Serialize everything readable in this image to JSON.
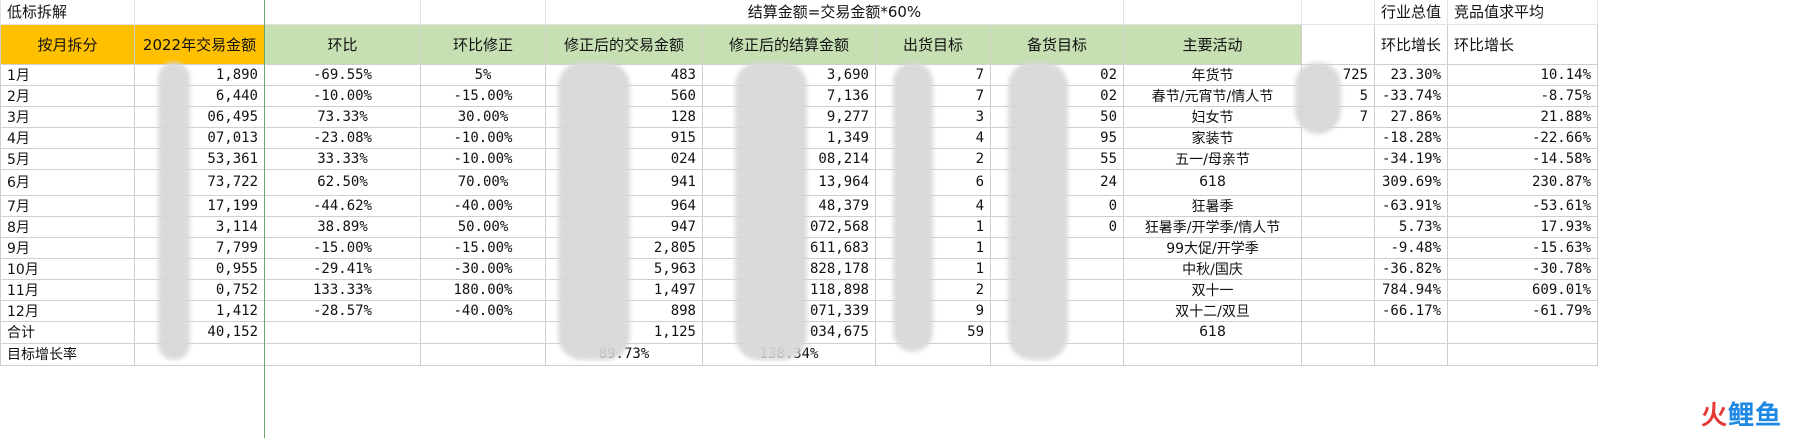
{
  "top": {
    "title": "低标拆解",
    "settlement_note": "结算金额=交易金额*60%",
    "industry_total": "行业总值",
    "competitor_avg": "竞品值求平均"
  },
  "headers": [
    "按月拆分",
    "2022年交易金额",
    "环比",
    "环比修正",
    "修正后的交易金额",
    "修正后的结算金额",
    "出货目标",
    "备货目标",
    "主要活动",
    "",
    "环比增长",
    "环比增长"
  ],
  "header_colors": {
    "orange": "#ffc000",
    "green": "#c6e0b4"
  },
  "rows": [
    {
      "month": "1月",
      "amount": "1,890",
      "mom": "-69.55%",
      "fix": "5%",
      "adj_trade": "483",
      "adj_settle": "3,690",
      "ship": "7",
      "stock": "02",
      "activity": "年货节",
      "extra": "725",
      "ind": "23.30%",
      "comp": "10.14%"
    },
    {
      "month": "2月",
      "amount": "6,440",
      "mom": "-10.00%",
      "fix": "-15.00%",
      "adj_trade": "560",
      "adj_settle": "7,136",
      "ship": "7",
      "stock": "02",
      "activity": "春节/元宵节/情人节",
      "extra": "5",
      "ind": "-33.74%",
      "comp": "-8.75%"
    },
    {
      "month": "3月",
      "amount": "06,495",
      "mom": "73.33%",
      "fix": "30.00%",
      "adj_trade": "128",
      "adj_settle": "9,277",
      "ship": "3",
      "stock": "50",
      "activity": "妇女节",
      "extra": "7",
      "ind": "27.86%",
      "comp": "21.88%"
    },
    {
      "month": "4月",
      "amount": "07,013",
      "mom": "-23.08%",
      "fix": "-10.00%",
      "adj_trade": "915",
      "adj_settle": "1,349",
      "ship": "4",
      "stock": "95",
      "activity": "家装节",
      "extra": "",
      "ind": "-18.28%",
      "comp": "-22.66%"
    },
    {
      "month": "5月",
      "amount": "53,361",
      "mom": "33.33%",
      "fix": "-10.00%",
      "adj_trade": "024",
      "adj_settle": "08,214",
      "ship": "2",
      "stock": "55",
      "activity": "五一/母亲节",
      "extra": "",
      "ind": "-34.19%",
      "comp": "-14.58%"
    },
    {
      "month": "6月",
      "amount": "73,722",
      "mom": "62.50%",
      "fix": "70.00%",
      "adj_trade": "941",
      "adj_settle": "13,964",
      "ship": "6",
      "stock": "24",
      "activity": "618",
      "extra": "",
      "ind": "309.69%",
      "comp": "230.87%"
    },
    {
      "month": "7月",
      "amount": "17,199",
      "mom": "-44.62%",
      "fix": "-40.00%",
      "adj_trade": "964",
      "adj_settle": "48,379",
      "ship": "4",
      "stock": "0",
      "activity": "狂暑季",
      "extra": "",
      "ind": "-63.91%",
      "comp": "-53.61%"
    },
    {
      "month": "8月",
      "amount": "3,114",
      "mom": "38.89%",
      "fix": "50.00%",
      "adj_trade": "947",
      "adj_settle": "072,568",
      "ship": "1",
      "stock": "0",
      "activity": "狂暑季/开学季/情人节",
      "extra": "",
      "ind": "5.73%",
      "comp": "17.93%"
    },
    {
      "month": "9月",
      "amount": "7,799",
      "mom": "-15.00%",
      "fix": "-15.00%",
      "adj_trade": "2,805",
      "adj_settle": "611,683",
      "ship": "1",
      "stock": "",
      "activity": "99大促/开学季",
      "extra": "",
      "ind": "-9.48%",
      "comp": "-15.63%"
    },
    {
      "month": "10月",
      "amount": "0,955",
      "mom": "-29.41%",
      "fix": "-30.00%",
      "adj_trade": "5,963",
      "adj_settle": "828,178",
      "ship": "1",
      "stock": "",
      "activity": "中秋/国庆",
      "extra": "",
      "ind": "-36.82%",
      "comp": "-30.78%"
    },
    {
      "month": "11月",
      "amount": "0,752",
      "mom": "133.33%",
      "fix": "180.00%",
      "adj_trade": "1,497",
      "adj_settle": "118,898",
      "ship": "2",
      "stock": "",
      "activity": "双十一",
      "extra": "",
      "ind": "784.94%",
      "comp": "609.01%"
    },
    {
      "month": "12月",
      "amount": "1,412",
      "mom": "-28.57%",
      "fix": "-40.00%",
      "adj_trade": "898",
      "adj_settle": "071,339",
      "ship": "9",
      "stock": "",
      "activity": "双十二/双旦",
      "extra": "",
      "ind": "-66.17%",
      "comp": "-61.79%"
    }
  ],
  "total_row": {
    "label": "合计",
    "amount": "40,152",
    "adj_trade": "1,125",
    "adj_settle": "034,675",
    "ship": "59",
    "activity": "618"
  },
  "growth_row": {
    "label": "目标增长率",
    "trade": "89.73%",
    "settle": "138.34%"
  },
  "watermark": {
    "part1": "火",
    "part2": "鲤鱼"
  }
}
